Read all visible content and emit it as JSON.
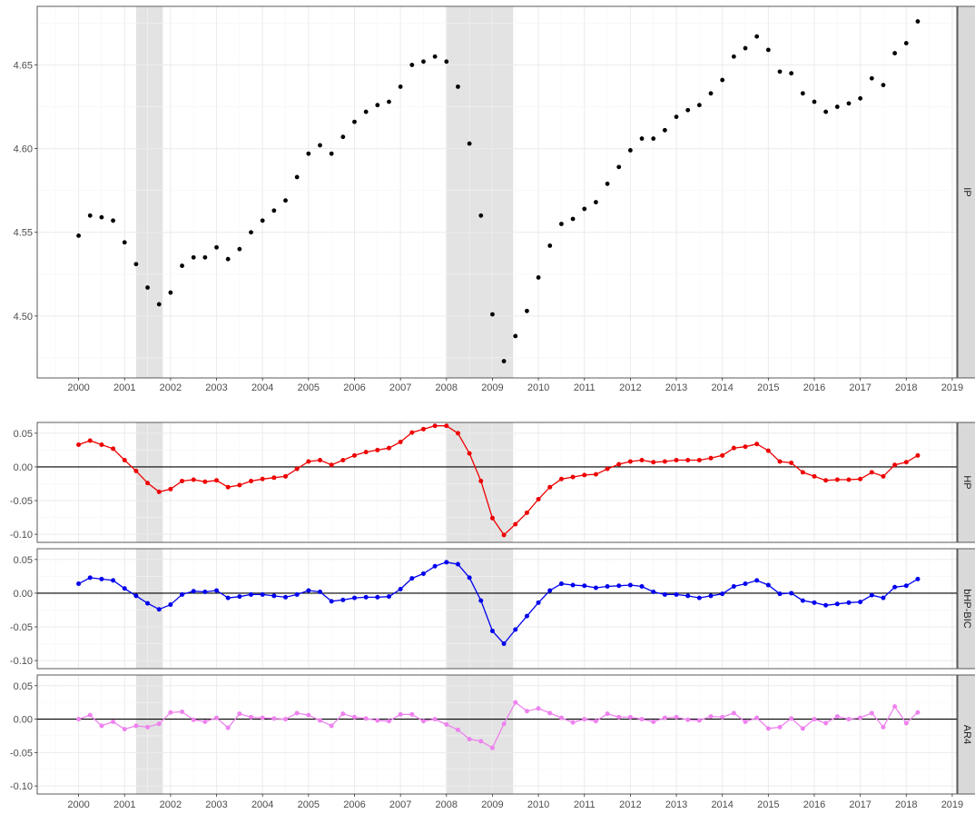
{
  "chart_data": [
    {
      "type": "scatter",
      "panel": "IP",
      "strip_label": "IP",
      "xlim": [
        1999.1,
        2019.1
      ],
      "ylim": [
        4.463,
        4.685
      ],
      "yticks": [
        "4.50",
        "4.55",
        "4.60",
        "4.65"
      ],
      "xticks": [
        "2000",
        "2001",
        "2002",
        "2003",
        "2004",
        "2005",
        "2006",
        "2007",
        "2008",
        "2009",
        "2010",
        "2011",
        "2012",
        "2013",
        "2014",
        "2015",
        "2016",
        "2017",
        "2018",
        "2019"
      ],
      "recessions": [
        [
          2001.25,
          2001.83
        ],
        [
          2008.0,
          2009.45
        ]
      ],
      "color": "#000000",
      "points": {
        "x": [
          2000.0,
          2000.25,
          2000.5,
          2000.75,
          2001.0,
          2001.25,
          2001.5,
          2001.75,
          2002.0,
          2002.25,
          2002.5,
          2002.75,
          2003.0,
          2003.25,
          2003.5,
          2003.75,
          2004.0,
          2004.25,
          2004.5,
          2004.75,
          2005.0,
          2005.25,
          2005.5,
          2005.75,
          2006.0,
          2006.25,
          2006.5,
          2006.75,
          2007.0,
          2007.25,
          2007.5,
          2007.75,
          2008.0,
          2008.25,
          2008.5,
          2008.75,
          2009.0,
          2009.25,
          2009.5,
          2009.75,
          2010.0,
          2010.25,
          2010.5,
          2010.75,
          2011.0,
          2011.25,
          2011.5,
          2011.75,
          2012.0,
          2012.25,
          2012.5,
          2012.75,
          2013.0,
          2013.25,
          2013.5,
          2013.75,
          2014.0,
          2014.25,
          2014.5,
          2014.75,
          2015.0,
          2015.25,
          2015.5,
          2015.75,
          2016.0,
          2016.25,
          2016.5,
          2016.75,
          2017.0,
          2017.25,
          2017.5,
          2017.75,
          2018.0,
          2018.25
        ],
        "y": [
          4.548,
          4.56,
          4.559,
          4.557,
          4.544,
          4.531,
          4.517,
          4.507,
          4.514,
          4.53,
          4.535,
          4.535,
          4.541,
          4.534,
          4.54,
          4.55,
          4.557,
          4.563,
          4.569,
          4.583,
          4.597,
          4.602,
          4.597,
          4.607,
          4.616,
          4.622,
          4.626,
          4.628,
          4.637,
          4.65,
          4.652,
          4.655,
          4.652,
          4.637,
          4.603,
          4.56,
          4.501,
          4.473,
          4.488,
          4.503,
          4.523,
          4.542,
          4.555,
          4.558,
          4.564,
          4.568,
          4.579,
          4.589,
          4.599,
          4.606,
          4.606,
          4.611,
          4.619,
          4.623,
          4.626,
          4.633,
          4.641,
          4.655,
          4.66,
          4.667,
          4.659,
          4.646,
          4.645,
          4.633,
          4.628,
          4.622,
          4.625,
          4.627,
          4.63,
          4.642,
          4.638,
          4.657,
          4.663,
          4.676
        ]
      }
    },
    {
      "type": "line",
      "panel": "HP",
      "strip_label": "HP",
      "xlim": [
        1999.1,
        2019.1
      ],
      "ylim": [
        -0.112,
        0.066
      ],
      "yticks": [
        "0.05",
        "0.00",
        "-0.05",
        "-0.10"
      ],
      "recessions": [
        [
          2001.25,
          2001.83
        ],
        [
          2008.0,
          2009.45
        ]
      ],
      "color": "#ee0000",
      "x": [
        2000.0,
        2000.25,
        2000.5,
        2000.75,
        2001.0,
        2001.25,
        2001.5,
        2001.75,
        2002.0,
        2002.25,
        2002.5,
        2002.75,
        2003.0,
        2003.25,
        2003.5,
        2003.75,
        2004.0,
        2004.25,
        2004.5,
        2004.75,
        2005.0,
        2005.25,
        2005.5,
        2005.75,
        2006.0,
        2006.25,
        2006.5,
        2006.75,
        2007.0,
        2007.25,
        2007.5,
        2007.75,
        2008.0,
        2008.25,
        2008.5,
        2008.75,
        2009.0,
        2009.25,
        2009.5,
        2009.75,
        2010.0,
        2010.25,
        2010.5,
        2010.75,
        2011.0,
        2011.25,
        2011.5,
        2011.75,
        2012.0,
        2012.25,
        2012.5,
        2012.75,
        2013.0,
        2013.25,
        2013.5,
        2013.75,
        2014.0,
        2014.25,
        2014.5,
        2014.75,
        2015.0,
        2015.25,
        2015.5,
        2015.75,
        2016.0,
        2016.25,
        2016.5,
        2016.75,
        2017.0,
        2017.25,
        2017.5,
        2017.75,
        2018.0,
        2018.25
      ],
      "y": [
        0.033,
        0.039,
        0.033,
        0.027,
        0.01,
        -0.006,
        -0.024,
        -0.037,
        -0.033,
        -0.021,
        -0.019,
        -0.022,
        -0.02,
        -0.03,
        -0.027,
        -0.021,
        -0.018,
        -0.016,
        -0.014,
        -0.003,
        0.008,
        0.01,
        0.003,
        0.01,
        0.017,
        0.022,
        0.025,
        0.028,
        0.037,
        0.051,
        0.056,
        0.061,
        0.061,
        0.05,
        0.02,
        -0.021,
        -0.076,
        -0.101,
        -0.085,
        -0.068,
        -0.048,
        -0.03,
        -0.018,
        -0.015,
        -0.012,
        -0.011,
        -0.003,
        0.004,
        0.008,
        0.01,
        0.007,
        0.008,
        0.01,
        0.01,
        0.01,
        0.013,
        0.017,
        0.028,
        0.03,
        0.034,
        0.024,
        0.008,
        0.006,
        -0.008,
        -0.014,
        -0.02,
        -0.019,
        -0.019,
        -0.018,
        -0.008,
        -0.014,
        0.003,
        0.007,
        0.017
      ]
    },
    {
      "type": "line",
      "panel": "bHP-BIC",
      "strip_label": "bHP-BIC",
      "xlim": [
        1999.1,
        2019.1
      ],
      "ylim": [
        -0.112,
        0.066
      ],
      "yticks": [
        "0.05",
        "0.00",
        "-0.05",
        "-0.10"
      ],
      "recessions": [
        [
          2001.25,
          2001.83
        ],
        [
          2008.0,
          2009.45
        ]
      ],
      "color": "#0000ee",
      "x": [
        2000.0,
        2000.25,
        2000.5,
        2000.75,
        2001.0,
        2001.25,
        2001.5,
        2001.75,
        2002.0,
        2002.25,
        2002.5,
        2002.75,
        2003.0,
        2003.25,
        2003.5,
        2003.75,
        2004.0,
        2004.25,
        2004.5,
        2004.75,
        2005.0,
        2005.25,
        2005.5,
        2005.75,
        2006.0,
        2006.25,
        2006.5,
        2006.75,
        2007.0,
        2007.25,
        2007.5,
        2007.75,
        2008.0,
        2008.25,
        2008.5,
        2008.75,
        2009.0,
        2009.25,
        2009.5,
        2009.75,
        2010.0,
        2010.25,
        2010.5,
        2010.75,
        2011.0,
        2011.25,
        2011.5,
        2011.75,
        2012.0,
        2012.25,
        2012.5,
        2012.75,
        2013.0,
        2013.25,
        2013.5,
        2013.75,
        2014.0,
        2014.25,
        2014.5,
        2014.75,
        2015.0,
        2015.25,
        2015.5,
        2015.75,
        2016.0,
        2016.25,
        2016.5,
        2016.75,
        2017.0,
        2017.25,
        2017.5,
        2017.75,
        2018.0,
        2018.25
      ],
      "y": [
        0.014,
        0.023,
        0.021,
        0.019,
        0.007,
        -0.004,
        -0.015,
        -0.024,
        -0.017,
        -0.002,
        0.003,
        0.002,
        0.004,
        -0.007,
        -0.005,
        -0.002,
        -0.002,
        -0.004,
        -0.006,
        -0.002,
        0.004,
        0.002,
        -0.012,
        -0.01,
        -0.007,
        -0.006,
        -0.006,
        -0.005,
        0.006,
        0.022,
        0.029,
        0.04,
        0.046,
        0.043,
        0.023,
        -0.011,
        -0.056,
        -0.075,
        -0.054,
        -0.034,
        -0.014,
        0.004,
        0.014,
        0.012,
        0.011,
        0.008,
        0.01,
        0.011,
        0.012,
        0.01,
        0.002,
        -0.002,
        -0.002,
        -0.004,
        -0.007,
        -0.004,
        -0.001,
        0.01,
        0.014,
        0.019,
        0.012,
        -0.001,
        0.0,
        -0.011,
        -0.014,
        -0.018,
        -0.016,
        -0.014,
        -0.013,
        -0.003,
        -0.007,
        0.009,
        0.011,
        0.021
      ]
    },
    {
      "type": "line",
      "panel": "AR4",
      "strip_label": "AR4",
      "xlim": [
        1999.1,
        2019.1
      ],
      "ylim": [
        -0.112,
        0.066
      ],
      "yticks": [
        "0.05",
        "0.00",
        "-0.05",
        "-0.10"
      ],
      "xticks": [
        "2000",
        "2001",
        "2002",
        "2003",
        "2004",
        "2005",
        "2006",
        "2007",
        "2008",
        "2009",
        "2010",
        "2011",
        "2012",
        "2013",
        "2014",
        "2015",
        "2016",
        "2017",
        "2018",
        "2019"
      ],
      "recessions": [
        [
          2001.25,
          2001.83
        ],
        [
          2008.0,
          2009.45
        ]
      ],
      "color": "#ee82ee",
      "x": [
        2000.0,
        2000.25,
        2000.5,
        2000.75,
        2001.0,
        2001.25,
        2001.5,
        2001.75,
        2002.0,
        2002.25,
        2002.5,
        2002.75,
        2003.0,
        2003.25,
        2003.5,
        2003.75,
        2004.0,
        2004.25,
        2004.5,
        2004.75,
        2005.0,
        2005.25,
        2005.5,
        2005.75,
        2006.0,
        2006.25,
        2006.5,
        2006.75,
        2007.0,
        2007.25,
        2007.5,
        2007.75,
        2008.0,
        2008.25,
        2008.5,
        2008.75,
        2009.0,
        2009.25,
        2009.5,
        2009.75,
        2010.0,
        2010.25,
        2010.5,
        2010.75,
        2011.0,
        2011.25,
        2011.5,
        2011.75,
        2012.0,
        2012.25,
        2012.5,
        2012.75,
        2013.0,
        2013.25,
        2013.5,
        2013.75,
        2014.0,
        2014.25,
        2014.5,
        2014.75,
        2015.0,
        2015.25,
        2015.5,
        2015.75,
        2016.0,
        2016.25,
        2016.5,
        2016.75,
        2017.0,
        2017.25,
        2017.5,
        2017.75,
        2018.0,
        2018.25
      ],
      "y": [
        0.0,
        0.006,
        -0.01,
        -0.004,
        -0.015,
        -0.01,
        -0.012,
        -0.007,
        0.01,
        0.011,
        -0.001,
        -0.004,
        0.002,
        -0.013,
        0.008,
        0.003,
        0.002,
        0.001,
        0.0,
        0.009,
        0.006,
        -0.002,
        -0.01,
        0.008,
        0.003,
        0.001,
        -0.002,
        -0.003,
        0.007,
        0.007,
        -0.003,
        0.0,
        -0.008,
        -0.016,
        -0.03,
        -0.033,
        -0.043,
        -0.007,
        0.025,
        0.012,
        0.016,
        0.009,
        0.002,
        -0.005,
        0.0,
        -0.003,
        0.008,
        0.003,
        0.003,
        0.0,
        -0.004,
        0.002,
        0.003,
        -0.001,
        -0.002,
        0.004,
        0.003,
        0.009,
        -0.004,
        0.002,
        -0.014,
        -0.012,
        0.001,
        -0.014,
        0.0,
        -0.006,
        0.004,
        0.0,
        0.002,
        0.009,
        -0.012,
        0.019,
        -0.006,
        0.01
      ]
    }
  ]
}
